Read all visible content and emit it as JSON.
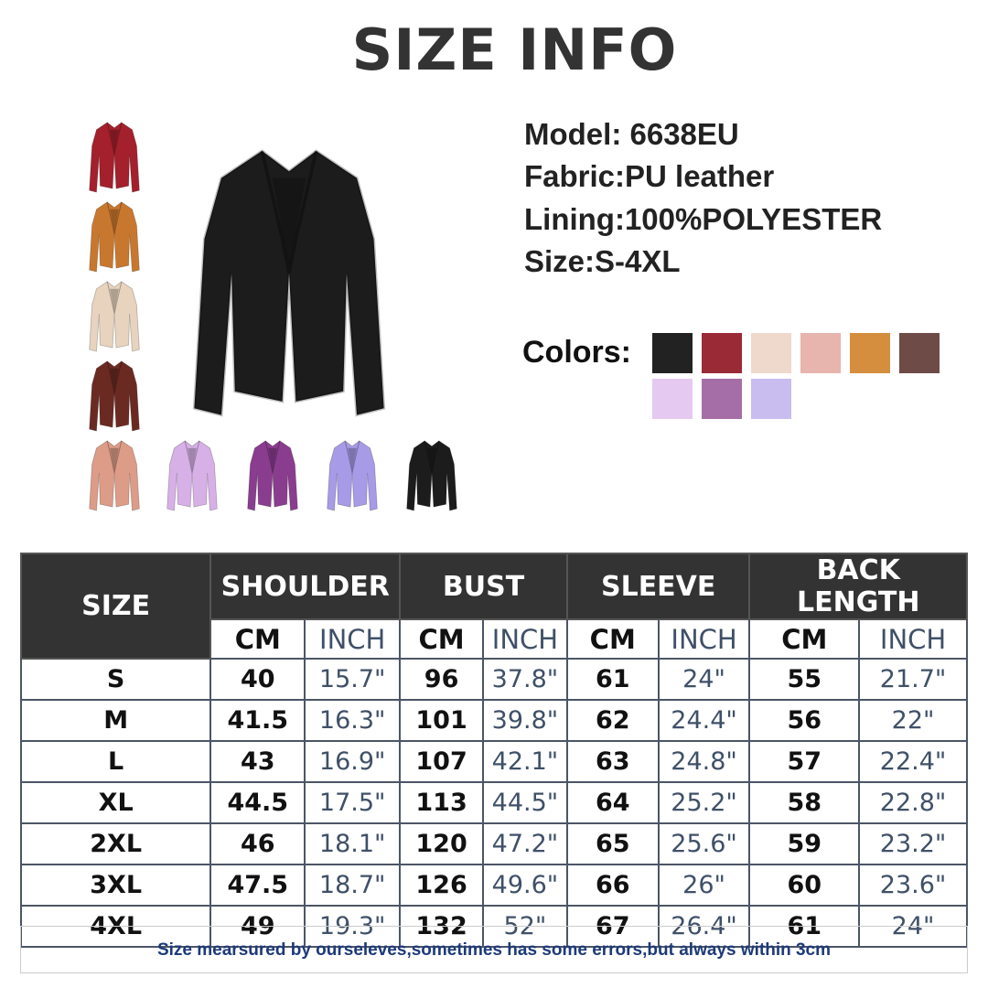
{
  "title": "SIZE INFO",
  "specs": {
    "model": "Model: 6638EU",
    "fabric": "Fabric:PU leather",
    "lining": "Lining:100%POLYESTER",
    "size": "Size:S-4XL"
  },
  "colors_label": "Colors:",
  "swatches": [
    "#222222",
    "#9a2a36",
    "#eed9cc",
    "#e7b4ae",
    "#d58e3d",
    "#6e4b47",
    "#e5c9f1",
    "#a66ea6",
    "#c9bdf0"
  ],
  "jacket_images": {
    "main": "#1c1c1c",
    "thumbs": [
      "#a3202c",
      "#c8782e",
      "#e7d3be",
      "#6a2a22",
      "#dc9c88",
      "#d6b0e6",
      "#8a3d8e",
      "#a79ae6",
      "#1c1c1c"
    ]
  },
  "table": {
    "size_header": "SIZE",
    "groups": [
      "SHOULDER",
      "BUST",
      "SLEEVE",
      "BACK LENGTH"
    ],
    "units": [
      "CM",
      "INCH"
    ],
    "rows": [
      [
        "S",
        "40",
        "15.7\"",
        "96",
        "37.8\"",
        "61",
        "24\"",
        "55",
        "21.7\""
      ],
      [
        "M",
        "41.5",
        "16.3\"",
        "101",
        "39.8\"",
        "62",
        "24.4\"",
        "56",
        "22\""
      ],
      [
        "L",
        "43",
        "16.9\"",
        "107",
        "42.1\"",
        "63",
        "24.8\"",
        "57",
        "22.4\""
      ],
      [
        "XL",
        "44.5",
        "17.5\"",
        "113",
        "44.5\"",
        "64",
        "25.2\"",
        "58",
        "22.8\""
      ],
      [
        "2XL",
        "46",
        "18.1\"",
        "120",
        "47.2\"",
        "65",
        "25.6\"",
        "59",
        "23.2\""
      ],
      [
        "3XL",
        "47.5",
        "18.7\"",
        "126",
        "49.6\"",
        "66",
        "26\"",
        "60",
        "23.6\""
      ],
      [
        "4XL",
        "49",
        "19.3\"",
        "132",
        "52\"",
        "67",
        "26.4\"",
        "61",
        "24\""
      ]
    ]
  },
  "footer": "Size mearsured by ourseleves,sometimes has some errors,but always within 3cm"
}
